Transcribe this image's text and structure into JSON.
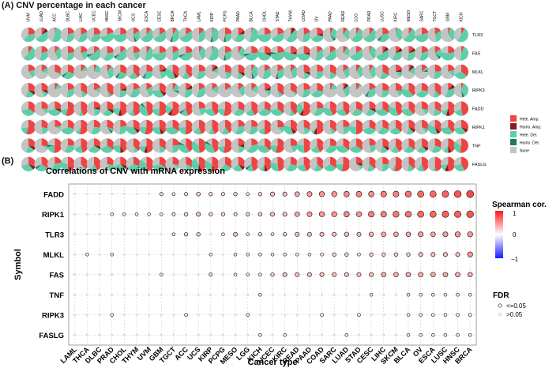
{
  "panel_a": {
    "label": "(A) CNV percentage in each cancer"
  },
  "panel_b": {
    "label": "(B)"
  },
  "colors": {
    "hete_amp": "#ef4444",
    "homo_amp": "#8b1a1a",
    "hete_del": "#5dcea8",
    "homo_del": "#1e7a5a",
    "none": "#c4c4c4"
  },
  "chart_data": [
    {
      "type": "pie",
      "title": "",
      "columns": [
        "UVM",
        "LUAD",
        "ACC",
        "DLBC",
        "LIHC",
        "UCEC",
        "HNSC",
        "SKCM",
        "UCS",
        "ESCA",
        "CESC",
        "BRCA",
        "THCA",
        "LAML",
        "KIRP",
        "PCPG",
        "PAAD",
        "BLCA",
        "CHOL",
        "STAD",
        "THYM",
        "COAD",
        "OV",
        "PAAD",
        "READ",
        "LGG",
        "PRAD",
        "LUSC",
        "KIRC",
        "MESO",
        "SARC",
        "TGCT",
        "GBM",
        "KICH"
      ],
      "rows": [
        "TLR3",
        "FAS",
        "MLKL",
        "RIPK3",
        "FADD",
        "RIPK1",
        "TNF",
        "FASLG"
      ],
      "legend": [
        "Hete. Amp.",
        "Homo. Amp.",
        "Hete. Del.",
        "Homo. Del.",
        "None"
      ],
      "legend_position": "right"
    },
    {
      "type": "scatter",
      "title": "Correlations of CNV with mRNA expression",
      "xlabel": "Cancer type",
      "ylabel": "Symbol",
      "x_categories": [
        "LAML",
        "THCA",
        "DLBC",
        "PRAD",
        "CHOL",
        "THYM",
        "UVM",
        "GBM",
        "TGCT",
        "ACC",
        "UCS",
        "KIRP",
        "PCPG",
        "MESO",
        "LGG",
        "KICH",
        "UCEC",
        "KIRC",
        "READ",
        "PAAD",
        "COAD",
        "SARC",
        "LUAD",
        "STAD",
        "CESC",
        "LIHC",
        "SKCM",
        "BLCA",
        "OV",
        "ESCA",
        "LUSC",
        "HNSC",
        "BRCA"
      ],
      "y_categories": [
        "FADD",
        "RIPK1",
        "TLR3",
        "MLKL",
        "FAS",
        "TNF",
        "RIPK3",
        "FASLG"
      ],
      "colorbar": {
        "title": "Spearman cor.",
        "max_label": "1",
        "mid_label": "0",
        "min_label": "−1"
      },
      "size_legend": {
        "title": "FDR",
        "items": [
          "<=0.05",
          ">0.05"
        ]
      },
      "grid": true,
      "points": {
        "FADD": [
          0,
          0,
          0,
          0,
          0,
          0,
          0,
          0.15,
          0.1,
          0.15,
          0.25,
          0.2,
          0.15,
          0.2,
          0.1,
          0.2,
          0.3,
          0.3,
          0.4,
          0.45,
          0.5,
          0.5,
          0.55,
          0.55,
          0.55,
          0.6,
          0.6,
          0.65,
          0.7,
          0.7,
          0.75,
          0.8,
          0.85
        ],
        "RIPK1": [
          0,
          0,
          0,
          0.1,
          0.1,
          0.1,
          0.1,
          0.1,
          0.15,
          0.2,
          0.3,
          0.2,
          0.2,
          0.15,
          0.2,
          0.25,
          0.3,
          0.3,
          0.4,
          0.45,
          0.5,
          0.5,
          0.55,
          0.5,
          0.6,
          0.6,
          0.65,
          0.65,
          0.7,
          0.7,
          0.75,
          0.75,
          0.8
        ],
        "TLR3": [
          0,
          0,
          0,
          0,
          0,
          0,
          0,
          0,
          0.1,
          0.2,
          0.2,
          0,
          0.1,
          0.3,
          0.1,
          0.2,
          0.1,
          0.2,
          0.3,
          0.3,
          0.3,
          0.3,
          0.35,
          0.3,
          0.35,
          0.4,
          0.4,
          0.4,
          0.45,
          0.4,
          0.45,
          0.5,
          0.5
        ],
        "MLKL": [
          0,
          0.1,
          0,
          0.1,
          0,
          0,
          0,
          0,
          0,
          0,
          0,
          0.1,
          0,
          0.1,
          0.1,
          0.1,
          0.1,
          0.1,
          0.1,
          0.1,
          0.1,
          0.2,
          0.2,
          0.1,
          0.2,
          0.2,
          0.2,
          0.2,
          0.3,
          0.3,
          0.3,
          0.3,
          0.5
        ],
        "FAS": [
          0,
          0,
          0,
          0,
          0,
          0,
          0,
          0.1,
          0,
          0,
          0,
          0.15,
          0,
          0.1,
          0.1,
          0.1,
          0.2,
          0.3,
          0.3,
          0.3,
          0.3,
          0.3,
          0.3,
          0.3,
          0.3,
          0.4,
          0.4,
          0.4,
          0.4,
          0.4,
          0.4,
          0.4,
          0.4
        ],
        "TNF": [
          0,
          0,
          0,
          0,
          0,
          0,
          0,
          0,
          0,
          0,
          0,
          0,
          0,
          0,
          0,
          0.1,
          0,
          0,
          0,
          0,
          0,
          0,
          0,
          0,
          0.1,
          0,
          0,
          0.1,
          0.1,
          0.1,
          0.1,
          0.1,
          0.1
        ],
        "RIPK3": [
          0,
          0,
          0,
          0.1,
          0,
          0,
          0,
          0,
          0,
          0.1,
          0,
          0,
          0,
          0,
          0.1,
          0,
          0,
          0,
          0,
          0,
          0.1,
          0,
          0,
          0.1,
          0,
          0,
          0,
          0.1,
          0.1,
          0.1,
          0.1,
          0.1,
          0.1
        ],
        "FASLG": [
          0,
          0,
          0,
          0,
          0,
          0,
          0,
          0,
          0,
          0,
          0,
          0,
          0,
          0,
          0,
          0.1,
          0,
          0.1,
          0,
          0,
          0,
          0,
          0.1,
          0,
          0,
          0,
          0,
          0.1,
          0.1,
          0.1,
          0.1,
          0.1,
          0.1
        ]
      }
    }
  ]
}
